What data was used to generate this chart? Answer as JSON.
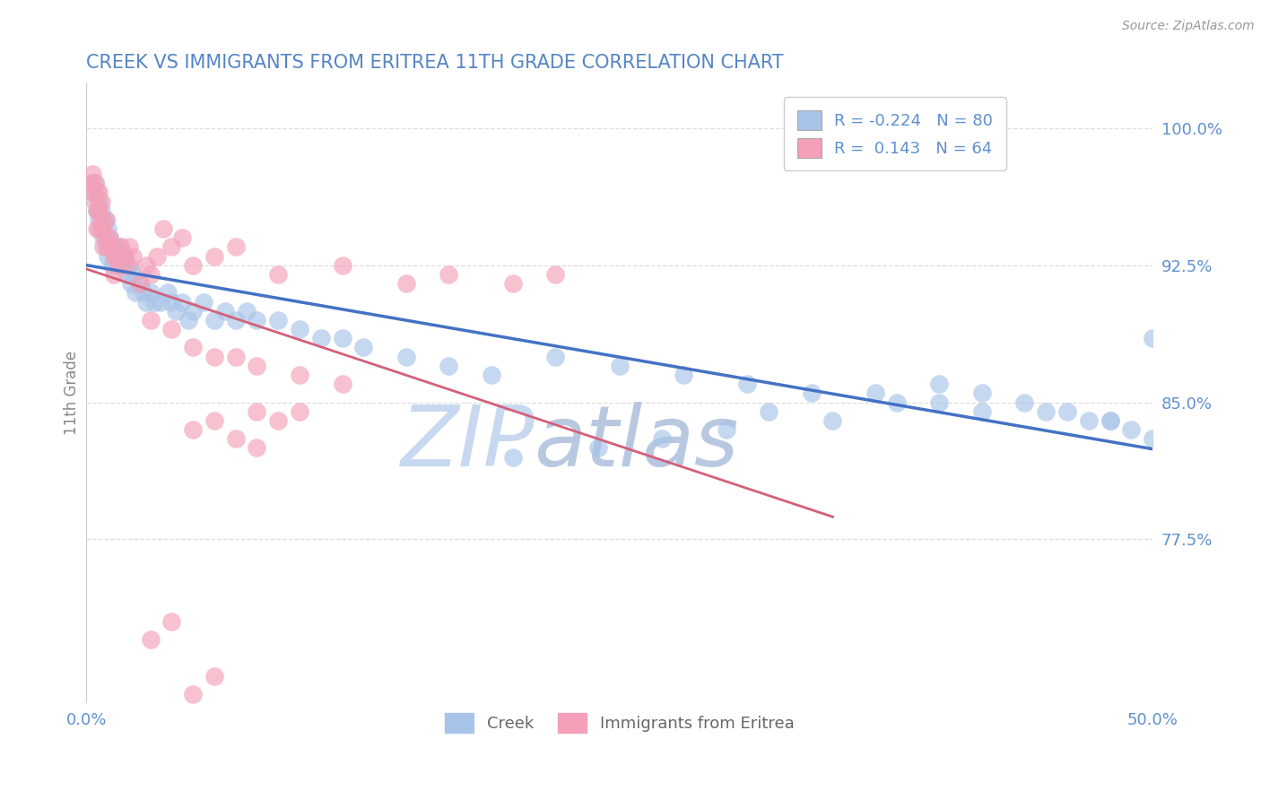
{
  "title": "CREEK VS IMMIGRANTS FROM ERITREA 11TH GRADE CORRELATION CHART",
  "source_text": "Source: ZipAtlas.com",
  "ylabel": "11th Grade",
  "ytick_labels": [
    "100.0%",
    "92.5%",
    "85.0%",
    "77.5%"
  ],
  "ytick_values": [
    1.0,
    0.925,
    0.85,
    0.775
  ],
  "xlim": [
    0.0,
    0.5
  ],
  "ylim": [
    0.685,
    1.025
  ],
  "creek_R": -0.224,
  "creek_N": 80,
  "eritrea_R": 0.143,
  "eritrea_N": 64,
  "creek_color": "#a8c4e8",
  "eritrea_color": "#f4a0b8",
  "creek_line_color": "#4472c4",
  "eritrea_line_color": "#d4607a",
  "watermark_zip_color": "#c8d8f0",
  "watermark_atlas_color": "#b8c8e0",
  "title_color": "#5585c5",
  "tick_color": "#6090d0",
  "ylabel_color": "#888888",
  "source_color": "#999999",
  "background_color": "#ffffff",
  "grid_color": "#dddddd",
  "legend_bg": "#ffffff",
  "legend_edge": "#cccccc",
  "creek_x": [
    0.003,
    0.004,
    0.005,
    0.006,
    0.006,
    0.007,
    0.007,
    0.008,
    0.008,
    0.009,
    0.009,
    0.01,
    0.01,
    0.011,
    0.012,
    0.012,
    0.013,
    0.014,
    0.015,
    0.015,
    0.016,
    0.017,
    0.018,
    0.019,
    0.02,
    0.021,
    0.022,
    0.023,
    0.025,
    0.027,
    0.028,
    0.03,
    0.032,
    0.035,
    0.038,
    0.04,
    0.042,
    0.045,
    0.048,
    0.05,
    0.055,
    0.06,
    0.065,
    0.07,
    0.075,
    0.08,
    0.09,
    0.1,
    0.11,
    0.12,
    0.13,
    0.15,
    0.17,
    0.19,
    0.22,
    0.25,
    0.28,
    0.31,
    0.34,
    0.37,
    0.38,
    0.4,
    0.42,
    0.44,
    0.46,
    0.47,
    0.48,
    0.49,
    0.5,
    0.5,
    0.48,
    0.45,
    0.42,
    0.4,
    0.35,
    0.32,
    0.3,
    0.27,
    0.24,
    0.2
  ],
  "creek_y": [
    0.965,
    0.97,
    0.955,
    0.95,
    0.96,
    0.945,
    0.955,
    0.94,
    0.95,
    0.95,
    0.935,
    0.945,
    0.93,
    0.94,
    0.935,
    0.925,
    0.93,
    0.935,
    0.925,
    0.93,
    0.935,
    0.925,
    0.93,
    0.92,
    0.925,
    0.915,
    0.92,
    0.91,
    0.915,
    0.91,
    0.905,
    0.91,
    0.905,
    0.905,
    0.91,
    0.905,
    0.9,
    0.905,
    0.895,
    0.9,
    0.905,
    0.895,
    0.9,
    0.895,
    0.9,
    0.895,
    0.895,
    0.89,
    0.885,
    0.885,
    0.88,
    0.875,
    0.87,
    0.865,
    0.875,
    0.87,
    0.865,
    0.86,
    0.855,
    0.855,
    0.85,
    0.86,
    0.855,
    0.85,
    0.845,
    0.84,
    0.84,
    0.835,
    0.83,
    0.885,
    0.84,
    0.845,
    0.845,
    0.85,
    0.84,
    0.845,
    0.835,
    0.83,
    0.825,
    0.82
  ],
  "eritrea_x": [
    0.002,
    0.003,
    0.003,
    0.004,
    0.004,
    0.005,
    0.005,
    0.005,
    0.006,
    0.006,
    0.006,
    0.007,
    0.007,
    0.008,
    0.008,
    0.009,
    0.009,
    0.01,
    0.011,
    0.012,
    0.013,
    0.013,
    0.014,
    0.015,
    0.016,
    0.018,
    0.019,
    0.02,
    0.022,
    0.025,
    0.028,
    0.03,
    0.033,
    0.036,
    0.04,
    0.045,
    0.05,
    0.06,
    0.07,
    0.09,
    0.12,
    0.15,
    0.17,
    0.2,
    0.22,
    0.03,
    0.04,
    0.05,
    0.06,
    0.07,
    0.08,
    0.1,
    0.12,
    0.08,
    0.09,
    0.1,
    0.05,
    0.06,
    0.07,
    0.08,
    0.03,
    0.04,
    0.05,
    0.06
  ],
  "eritrea_y": [
    0.97,
    0.975,
    0.965,
    0.97,
    0.96,
    0.965,
    0.955,
    0.945,
    0.965,
    0.955,
    0.945,
    0.96,
    0.95,
    0.945,
    0.935,
    0.95,
    0.94,
    0.935,
    0.94,
    0.935,
    0.93,
    0.92,
    0.93,
    0.925,
    0.935,
    0.93,
    0.925,
    0.935,
    0.93,
    0.915,
    0.925,
    0.92,
    0.93,
    0.945,
    0.935,
    0.94,
    0.925,
    0.93,
    0.935,
    0.92,
    0.925,
    0.915,
    0.92,
    0.915,
    0.92,
    0.895,
    0.89,
    0.88,
    0.875,
    0.875,
    0.87,
    0.865,
    0.86,
    0.845,
    0.84,
    0.845,
    0.835,
    0.84,
    0.83,
    0.825,
    0.72,
    0.73,
    0.69,
    0.7
  ]
}
